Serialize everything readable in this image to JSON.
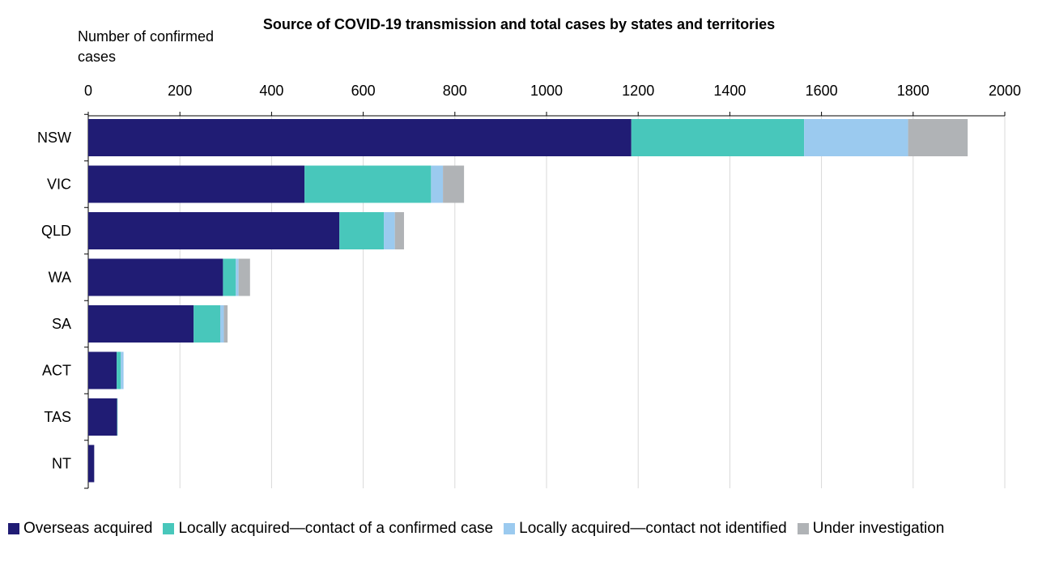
{
  "chart_data": {
    "type": "bar",
    "orientation": "horizontal",
    "stacked": true,
    "title": "Source of COVID-19 transmission and total cases by states and territories",
    "xlabel": "Number of confirmed cases",
    "xlim": [
      0,
      2000
    ],
    "xticks": [
      0,
      200,
      400,
      600,
      800,
      1000,
      1200,
      1400,
      1600,
      1800,
      2000
    ],
    "grid": "vertical",
    "legend_position": "bottom",
    "categories": [
      "NSW",
      "VIC",
      "QLD",
      "WA",
      "SA",
      "ACT",
      "TAS",
      "NT"
    ],
    "series": [
      {
        "name": "Overseas acquired",
        "color": "#201c74",
        "values": [
          1185,
          472,
          548,
          294,
          230,
          62,
          63,
          13
        ]
      },
      {
        "name": "Locally acquired—contact of a confirmed case",
        "color": "#48c7bb",
        "values": [
          377,
          276,
          97,
          28,
          58,
          9,
          1,
          0
        ]
      },
      {
        "name": "Locally acquired—contact not identified",
        "color": "#9bcaef",
        "values": [
          227,
          26,
          24,
          6,
          8,
          6,
          0,
          0
        ]
      },
      {
        "name": "Under investigation",
        "color": "#b0b3b6",
        "values": [
          130,
          46,
          20,
          25,
          8,
          0,
          0,
          0
        ]
      }
    ]
  }
}
